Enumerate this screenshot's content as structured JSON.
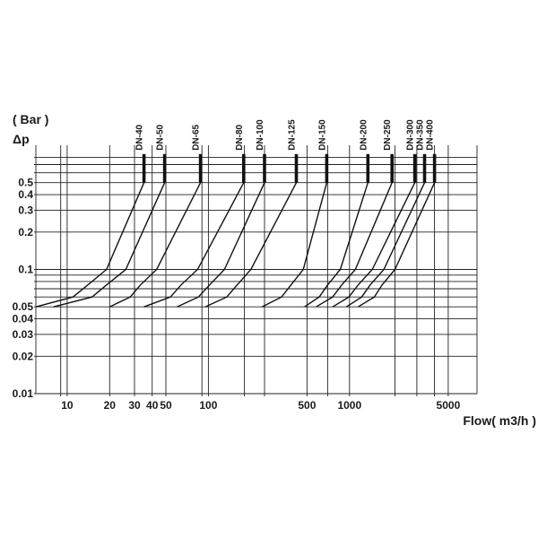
{
  "chart_data": {
    "type": "line",
    "title": "",
    "ylabel_unit": "( Bar )",
    "ylabel": "Δp",
    "xlabel": "Flow( m3/h )",
    "x_scale": "log",
    "y_scale": "log",
    "xlim": [
      6,
      8000
    ],
    "ylim": [
      0.01,
      1
    ],
    "grid": true,
    "x_ticks": [
      {
        "value": 10,
        "label": "10"
      },
      {
        "value": 20,
        "label": "20"
      },
      {
        "value": 30,
        "label": "30"
      },
      {
        "value": 40,
        "label": "40"
      },
      {
        "value": 50,
        "label": "50"
      },
      {
        "value": 100,
        "label": "100"
      },
      {
        "value": 500,
        "label": "500"
      },
      {
        "value": 1000,
        "label": "1000"
      },
      {
        "value": 5000,
        "label": "5000"
      }
    ],
    "y_ticks": [
      {
        "value": 0.5,
        "label": "0.5"
      },
      {
        "value": 0.4,
        "label": "0.4"
      },
      {
        "value": 0.3,
        "label": "0.3"
      },
      {
        "value": 0.2,
        "label": "0.2"
      },
      {
        "value": 0.1,
        "label": "0.1"
      },
      {
        "value": 0.05,
        "label": "0.05"
      },
      {
        "value": 0.04,
        "label": "0.04"
      },
      {
        "value": 0.03,
        "label": "0.03"
      },
      {
        "value": 0.02,
        "label": "0.02"
      },
      {
        "value": 0.01,
        "label": "0.01"
      }
    ],
    "x_gridlines": [
      9,
      10,
      20,
      30,
      40,
      50,
      90,
      100,
      180,
      250,
      500,
      700,
      1000,
      2100,
      3000,
      4000,
      5000
    ],
    "y_gridlines": [
      0.01,
      0.02,
      0.03,
      0.04,
      0.05,
      0.06,
      0.07,
      0.08,
      0.09,
      0.1,
      0.2,
      0.3,
      0.4,
      0.5,
      0.6,
      0.7,
      0.8
    ],
    "series": [
      {
        "name": "DN-40",
        "points": [
          [
            6,
            0.05
          ],
          [
            11,
            0.06
          ],
          [
            14,
            0.075
          ],
          [
            19,
            0.1
          ],
          [
            35,
            0.5
          ]
        ],
        "vertical_top": 0.85
      },
      {
        "name": "DN-50",
        "points": [
          [
            8,
            0.05
          ],
          [
            15,
            0.06
          ],
          [
            19,
            0.075
          ],
          [
            26,
            0.1
          ],
          [
            49,
            0.5
          ]
        ],
        "vertical_top": 0.85
      },
      {
        "name": "DN-65",
        "points": [
          [
            20,
            0.05
          ],
          [
            28,
            0.06
          ],
          [
            33,
            0.075
          ],
          [
            43,
            0.1
          ],
          [
            88,
            0.5
          ]
        ],
        "vertical_top": 0.85
      },
      {
        "name": "DN-80",
        "points": [
          [
            35,
            0.05
          ],
          [
            54,
            0.06
          ],
          [
            64,
            0.075
          ],
          [
            84,
            0.1
          ],
          [
            178,
            0.5
          ]
        ],
        "vertical_top": 0.85
      },
      {
        "name": "DN-100",
        "points": [
          [
            60,
            0.05
          ],
          [
            85,
            0.06
          ],
          [
            102,
            0.075
          ],
          [
            130,
            0.1
          ],
          [
            250,
            0.5
          ]
        ],
        "vertical_top": 0.85
      },
      {
        "name": "DN-125",
        "points": [
          [
            95,
            0.05
          ],
          [
            135,
            0.06
          ],
          [
            160,
            0.075
          ],
          [
            200,
            0.1
          ],
          [
            420,
            0.5
          ]
        ],
        "vertical_top": 0.85
      },
      {
        "name": "DN-150",
        "points": [
          [
            240,
            0.05
          ],
          [
            330,
            0.06
          ],
          [
            385,
            0.075
          ],
          [
            470,
            0.1
          ],
          [
            690,
            0.5
          ]
        ],
        "vertical_top": 0.85
      },
      {
        "name": "DN-200",
        "points": [
          [
            480,
            0.05
          ],
          [
            610,
            0.06
          ],
          [
            700,
            0.075
          ],
          [
            860,
            0.1
          ],
          [
            1350,
            0.5
          ]
        ],
        "vertical_top": 0.85
      },
      {
        "name": "DN-250",
        "points": [
          [
            580,
            0.05
          ],
          [
            760,
            0.06
          ],
          [
            880,
            0.075
          ],
          [
            1100,
            0.1
          ],
          [
            2000,
            0.5
          ]
        ],
        "vertical_top": 0.85
      },
      {
        "name": "DN-300",
        "points": [
          [
            760,
            0.05
          ],
          [
            990,
            0.06
          ],
          [
            1150,
            0.075
          ],
          [
            1450,
            0.1
          ],
          [
            2900,
            0.5
          ]
        ],
        "vertical_top": 0.85
      },
      {
        "name": "DN-350",
        "points": [
          [
            950,
            0.05
          ],
          [
            1220,
            0.06
          ],
          [
            1400,
            0.075
          ],
          [
            1750,
            0.1
          ],
          [
            3400,
            0.5
          ]
        ],
        "vertical_top": 0.85
      },
      {
        "name": "DN-400",
        "points": [
          [
            1150,
            0.05
          ],
          [
            1500,
            0.06
          ],
          [
            1700,
            0.075
          ],
          [
            2100,
            0.1
          ],
          [
            4000,
            0.5
          ]
        ],
        "vertical_top": 0.85
      }
    ]
  }
}
